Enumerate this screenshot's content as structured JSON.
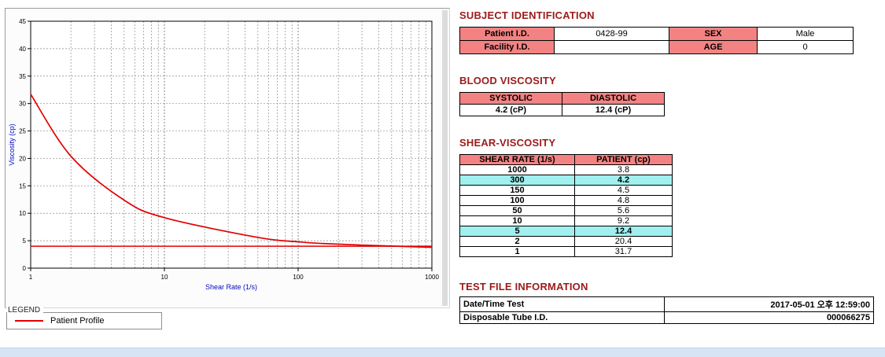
{
  "colors": {
    "heading": "#9c1a1a",
    "table_header_bg": "#f38383",
    "highlight_bg": "#a0f0f0",
    "series_red": "#e00000",
    "axis_label_blue": "#0008c8",
    "window_band": "#d7e4f3"
  },
  "chart": {
    "legend_title": "LEGEND",
    "legend_series": "Patient Profile"
  },
  "chart_data": {
    "type": "line",
    "title": "",
    "xlabel": "Shear Rate (1/s)",
    "ylabel": "Viscosity (cp)",
    "x_scale": "log",
    "xlim": [
      1,
      1000
    ],
    "ylim": [
      0,
      45
    ],
    "x_ticks": [
      1,
      10,
      100,
      1000
    ],
    "y_tick_step": 5,
    "grid": true,
    "legend_position": "below-left",
    "series": [
      {
        "name": "Patient Profile",
        "color": "#e00000",
        "x": [
          1,
          2,
          5,
          10,
          50,
          100,
          150,
          300,
          1000
        ],
        "y": [
          31.7,
          20.4,
          12.4,
          9.2,
          5.6,
          4.8,
          4.5,
          4.2,
          3.8
        ]
      }
    ],
    "reference_line": {
      "y": 4.0,
      "color": "#e00000"
    }
  },
  "subject": {
    "heading": "SUBJECT IDENTIFICATION",
    "patient_id_label": "Patient I.D.",
    "patient_id": "0428-99",
    "sex_label": "SEX",
    "sex": "Male",
    "facility_id_label": "Facility I.D.",
    "facility_id": "",
    "age_label": "AGE",
    "age": "0"
  },
  "blood_viscosity": {
    "heading": "BLOOD VISCOSITY",
    "systolic_label": "SYSTOLIC",
    "diastolic_label": "DIASTOLIC",
    "systolic_value": "4.2 (cP)",
    "diastolic_value": "12.4 (cP)"
  },
  "shear_viscosity": {
    "heading": "SHEAR-VISCOSITY",
    "col_rate": "SHEAR RATE (1/s)",
    "col_patient": "PATIENT (cp)",
    "rows": [
      {
        "rate": "1000",
        "patient": "3.8",
        "highlight": false
      },
      {
        "rate": "300",
        "patient": "4.2",
        "highlight": true
      },
      {
        "rate": "150",
        "patient": "4.5",
        "highlight": false
      },
      {
        "rate": "100",
        "patient": "4.8",
        "highlight": false
      },
      {
        "rate": "50",
        "patient": "5.6",
        "highlight": false
      },
      {
        "rate": "10",
        "patient": "9.2",
        "highlight": false
      },
      {
        "rate": "5",
        "patient": "12.4",
        "highlight": true
      },
      {
        "rate": "2",
        "patient": "20.4",
        "highlight": false
      },
      {
        "rate": "1",
        "patient": "31.7",
        "highlight": false
      }
    ]
  },
  "test_file": {
    "heading": "TEST FILE INFORMATION",
    "date_label": "Date/Time Test",
    "date_value": "2017-05-01  오후 12:59:00",
    "tube_label": "Disposable Tube I.D.",
    "tube_value": "000066275"
  }
}
